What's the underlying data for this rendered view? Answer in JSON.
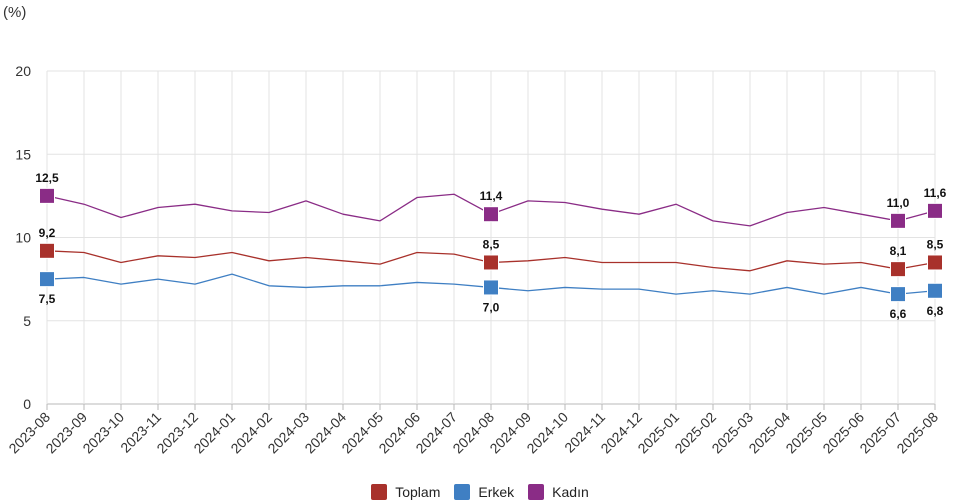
{
  "chart_data": {
    "type": "line",
    "y_unit_label": "(%)",
    "ylim": [
      0,
      20
    ],
    "y_ticks": [
      0,
      5,
      10,
      15,
      20
    ],
    "grid": true,
    "legend_position": "bottom-center",
    "categories": [
      "2023-08",
      "2023-09",
      "2023-10",
      "2023-11",
      "2023-12",
      "2024-01",
      "2024-02",
      "2024-03",
      "2024-04",
      "2024-05",
      "2024-06",
      "2024-07",
      "2024-08",
      "2024-09",
      "2024-10",
      "2024-11",
      "2024-12",
      "2025-01",
      "2025-02",
      "2025-03",
      "2025-04",
      "2025-05",
      "2025-06",
      "2025-07",
      "2025-08"
    ],
    "series": [
      {
        "name": "Toplam",
        "color": "#a8312b",
        "values": [
          9.2,
          9.1,
          8.5,
          8.9,
          8.8,
          9.1,
          8.6,
          8.8,
          8.6,
          8.4,
          9.1,
          9.0,
          8.5,
          8.6,
          8.8,
          8.5,
          8.5,
          8.5,
          8.2,
          8.0,
          8.6,
          8.4,
          8.5,
          8.1,
          8.5
        ],
        "labels": [
          {
            "index": 0,
            "text": "9,2",
            "position": "above"
          },
          {
            "index": 12,
            "text": "8,5",
            "position": "above"
          },
          {
            "index": 23,
            "text": "8,1",
            "position": "above"
          },
          {
            "index": 24,
            "text": "8,5",
            "position": "above"
          }
        ]
      },
      {
        "name": "Erkek",
        "color": "#3f7fc3",
        "values": [
          7.5,
          7.6,
          7.2,
          7.5,
          7.2,
          7.8,
          7.1,
          7.0,
          7.1,
          7.1,
          7.3,
          7.2,
          7.0,
          6.8,
          7.0,
          6.9,
          6.9,
          6.6,
          6.8,
          6.6,
          7.0,
          6.6,
          7.0,
          6.6,
          6.8
        ],
        "labels": [
          {
            "index": 0,
            "text": "7,5",
            "position": "below"
          },
          {
            "index": 12,
            "text": "7,0",
            "position": "below"
          },
          {
            "index": 23,
            "text": "6,6",
            "position": "below"
          },
          {
            "index": 24,
            "text": "6,8",
            "position": "below"
          }
        ]
      },
      {
        "name": "Kadın",
        "color": "#8a2c86",
        "values": [
          12.5,
          12.0,
          11.2,
          11.8,
          12.0,
          11.6,
          11.5,
          12.2,
          11.4,
          11.0,
          12.4,
          12.6,
          11.4,
          12.2,
          12.1,
          11.7,
          11.4,
          12.0,
          11.0,
          10.7,
          11.5,
          11.8,
          11.4,
          11.0,
          11.6
        ],
        "labels": [
          {
            "index": 0,
            "text": "12,5",
            "position": "above"
          },
          {
            "index": 12,
            "text": "11,4",
            "position": "above"
          },
          {
            "index": 23,
            "text": "11,0",
            "position": "above"
          },
          {
            "index": 24,
            "text": "11,6",
            "position": "above"
          }
        ]
      }
    ]
  }
}
